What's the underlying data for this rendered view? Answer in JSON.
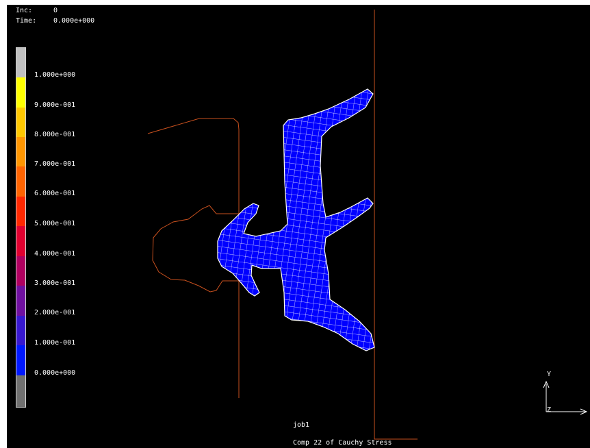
{
  "header": {
    "inc_label": "Inc:",
    "inc_value": "0",
    "time_label": "Time:",
    "time_value": "0.000e+000"
  },
  "legend": {
    "labels": [
      "1.000e+000",
      "9.000e-001",
      "8.000e-001",
      "7.000e-001",
      "6.000e-001",
      "5.000e-001",
      "4.000e-001",
      "3.000e-001",
      "2.000e-001",
      "1.000e-001",
      "0.000e+000"
    ],
    "colors": [
      "#c0c0c0",
      "#ffff00",
      "#ffc800",
      "#ff9600",
      "#ff6400",
      "#ff2800",
      "#e00030",
      "#b00060",
      "#7010a0",
      "#3818d0",
      "#0018ff",
      "#707070"
    ]
  },
  "footer": {
    "job_name": "job1",
    "result_label": "Comp 22 of Cauchy Stress"
  },
  "axes": {
    "y_label": "Y",
    "z_label": "Z"
  },
  "colors": {
    "background": "#000000",
    "mesh_fill": "#0000ff",
    "mesh_lines": "#ffffff",
    "outline": "#c8501e"
  }
}
